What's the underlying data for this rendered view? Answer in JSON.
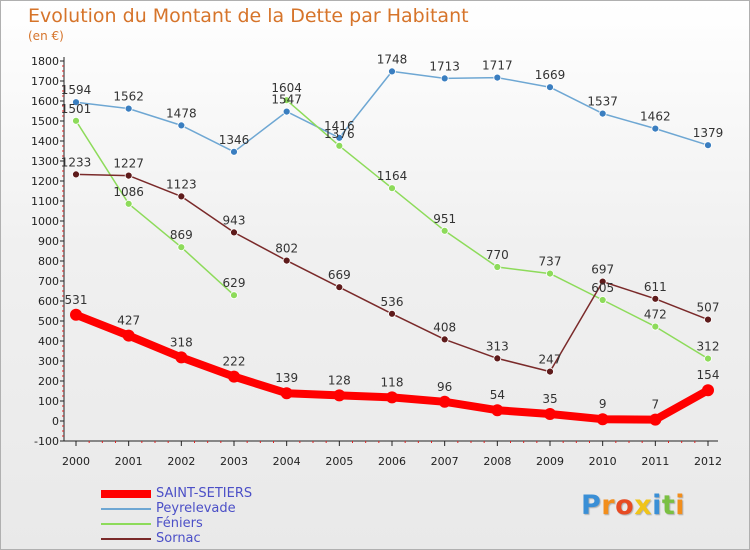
{
  "title": "Evolution du Montant de la Dette par Habitant",
  "subtitle": "(en €)",
  "logo": {
    "text": "Proxiti",
    "colors": [
      "#3a8fd6",
      "#f28e1c",
      "#e74b23",
      "#f0c419",
      "#3a8fd6",
      "#7bc043",
      "#f28e1c"
    ]
  },
  "chart_data": {
    "type": "line",
    "title": "Evolution du Montant de la Dette par Habitant",
    "ylabel": "(en €)",
    "xlabel": "",
    "x": [
      "2000",
      "2001",
      "2002",
      "2003",
      "2004",
      "2005",
      "2006",
      "2007",
      "2008",
      "2009",
      "2010",
      "2011",
      "2012"
    ],
    "ylim": [
      -100,
      1800
    ],
    "yticks": [
      -100,
      0,
      100,
      200,
      300,
      400,
      500,
      600,
      700,
      800,
      900,
      1000,
      1100,
      1200,
      1300,
      1400,
      1500,
      1600,
      1700,
      1800
    ],
    "grid": false,
    "legend_position": "bottom-left",
    "series": [
      {
        "name": "SAINT-SETIERS",
        "color": "#ff0000",
        "width": 8,
        "marker": 6,
        "values": [
          531,
          427,
          318,
          222,
          139,
          128,
          118,
          96,
          54,
          35,
          9,
          7,
          154
        ],
        "labels": [
          "531",
          "427",
          "318",
          "222",
          "139",
          "128",
          "118",
          "96",
          "54",
          "35",
          "9",
          "7",
          "154"
        ]
      },
      {
        "name": "Peyrelevade",
        "color": "#6ea7d3",
        "width": 1.5,
        "marker": 3.5,
        "marker_color": "#3a7ec0",
        "values": [
          1594,
          1562,
          1478,
          1346,
          1547,
          1416,
          1748,
          1713,
          1717,
          1669,
          1537,
          1462,
          1379
        ],
        "labels": [
          "1594",
          "1562",
          "1478",
          "1346",
          "1547",
          "1416",
          "1748",
          "1713",
          "1717",
          "1669",
          "1537",
          "1462",
          "1379"
        ]
      },
      {
        "name": "Féniers",
        "color": "#8ddb5a",
        "width": 1.5,
        "marker": 3.5,
        "marker_color": "#8ddb5a",
        "values": [
          1501,
          1086,
          869,
          629,
          1604,
          1376,
          1164,
          951,
          770,
          737,
          605,
          472,
          312
        ],
        "labels": [
          "1501",
          "1086",
          "869",
          "629",
          "1604",
          "1376",
          "1164",
          "951",
          "770",
          "737",
          "605",
          "472",
          "312"
        ],
        "gaps": [
          3
        ]
      },
      {
        "name": "Sornac",
        "color": "#7a2a2a",
        "width": 1.5,
        "marker": 3.5,
        "marker_color": "#5e1b1b",
        "values": [
          1233,
          1227,
          1123,
          943,
          802,
          669,
          536,
          408,
          313,
          247,
          697,
          611,
          507
        ],
        "labels": [
          "1233",
          "1227",
          "1123",
          "943",
          "802",
          "669",
          "536",
          "408",
          "313",
          "247",
          "697",
          "611",
          "507"
        ]
      }
    ]
  }
}
